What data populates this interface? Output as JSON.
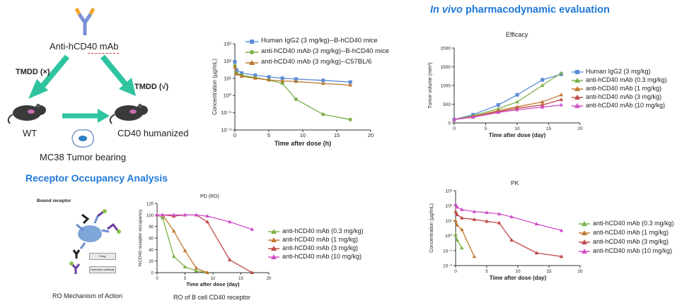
{
  "tmdd": {
    "antibody_label": "Anti-hCD40 mAb",
    "tmdd_left": "TMDD (×)",
    "tmdd_right": "TMDD (√)",
    "wt_label": "WT",
    "humanized_label": "CD40 humanized",
    "tumor_label": "MC38 Tumor bearing",
    "colors": {
      "arrow": "#2ec4a0",
      "antibody_tip": "#f2a52a",
      "antibody_stem": "#7b8fd6"
    }
  },
  "pk_dose": {
    "legend": [
      "Human IgG2 (3 mg/kg)--B-hCD40 mice",
      "anti-hCD40 mAb (3 mg/kg)--B-hCD40 mice",
      "anti-hCD40 mAb (3 mg/kg)--C57BL/6"
    ],
    "xlabel": "Time after dose (h)",
    "ylabel": "Concentration (µg/mL)",
    "xticks": [
      "0",
      "5",
      "10",
      "15",
      "20"
    ],
    "yticks": [
      "10³",
      "10²",
      "10¹",
      "10⁰",
      "10⁻¹",
      "10⁻²"
    ]
  },
  "invivo": {
    "heading_italic": "In vivo",
    "heading_rest": " pharmacodynamic evaluation"
  },
  "efficacy": {
    "title": "Efficacy",
    "xlabel": "Time after dose (day)",
    "ylabel": "Tumor volume (mm³)",
    "xticks": [
      "0",
      "5",
      "10",
      "15",
      "20"
    ],
    "yticks": [
      "0",
      "500",
      "1000",
      "1500",
      "2000"
    ],
    "legend": [
      "Human IgG2 (3 mg/kg)",
      "anti-hCD40 mAb (0.3 mg/kg)",
      "anti-hCD40 mAb (1 mg/kg)",
      "anti-hCD40 mAb (3 mg/kg)",
      "anti-hCD40 mAb (10 mg/kg)"
    ]
  },
  "ro": {
    "heading": "Receptor Occupancy Analysis",
    "bound_label": "Bound receptor",
    "drug_label": "Drug",
    "detection_label": "Detection antibody",
    "mechanism_label": "RO Mechanism of Action",
    "chart_title": "PD (RO)",
    "xlabel": "Time after dose (day)",
    "ylabel": "%CD40 receptor occupancy",
    "caption": "RO of  B cell CD40 receptor",
    "xticks": [
      "0",
      "5",
      "10",
      "15",
      "20"
    ],
    "yticks": [
      "0",
      "20",
      "40",
      "60",
      "80",
      "100",
      "120"
    ],
    "legend": [
      "anti-hCD40 mAb (0.3 mg/kg)",
      "anti-hCD40 mAb (1 mg/kg)",
      "anti-hCD40 mAb (3 mg/kg)",
      "anti-hCD40 mAb (10 mg/kg)"
    ]
  },
  "pk": {
    "title": "PK",
    "xlabel": "Time after dose (day)",
    "ylabel": "Concentration (µg/mL)",
    "xticks": [
      "0",
      "5",
      "10",
      "15",
      "20"
    ],
    "yticks": [
      "10³",
      "10²",
      "10¹",
      "10⁰",
      "10⁻¹",
      "10⁻²"
    ],
    "legend": [
      "anti-hCD40 mAb (0.3 mg/kg)",
      "anti-hCD40 mAb (1 mg/kg)",
      "anti-hCD40 mAb (3 mg/kg)",
      "anti-hCD40 mAb (10 mg/kg)"
    ]
  },
  "chart_data": [
    {
      "type": "line",
      "title": "",
      "xlabel": "Time after dose (h)",
      "ylabel": "Concentration (µg/mL)",
      "xlim": [
        0,
        20
      ],
      "ylim": [
        0.01,
        1000
      ],
      "yscale": "log",
      "series": [
        {
          "name": "Human IgG2 (3 mg/kg)--B-hCD40 mice",
          "color": "#5b8bd6",
          "x": [
            0,
            0.25,
            1,
            3,
            5,
            7,
            9,
            13,
            17
          ],
          "y": [
            90,
            30,
            20,
            15,
            12,
            10,
            9,
            7.5,
            6
          ]
        },
        {
          "name": "anti-hCD40 mAb (3 mg/kg)--B-hCD40 mice",
          "color": "#7bb248",
          "x": [
            0,
            0.25,
            1,
            3,
            5,
            7,
            9,
            13,
            17
          ],
          "y": [
            55,
            20,
            15,
            11,
            8,
            5,
            0.6,
            0.08,
            0.04
          ]
        },
        {
          "name": "anti-hCD40 mAb (3 mg/kg)--C57BL/6",
          "color": "#b8762a",
          "x": [
            0,
            0.25,
            1,
            3,
            5,
            7,
            9,
            13,
            17
          ],
          "y": [
            45,
            18,
            13,
            10,
            8,
            7,
            6.5,
            5,
            4
          ]
        }
      ]
    },
    {
      "type": "line",
      "title": "Efficacy",
      "xlabel": "Time after dose (day)",
      "ylabel": "Tumor volume (mm³)",
      "xlim": [
        0,
        20
      ],
      "ylim": [
        0,
        2000
      ],
      "series": [
        {
          "name": "Human IgG2 (3 mg/kg)",
          "color": "#5b8bd6",
          "x": [
            0,
            3,
            7,
            10,
            14,
            17
          ],
          "y": [
            90,
            220,
            480,
            750,
            1150,
            1300
          ]
        },
        {
          "name": "anti-hCD40 mAb (0.3 mg/kg)",
          "color": "#7bb248",
          "x": [
            0,
            3,
            7,
            10,
            14,
            17
          ],
          "y": [
            90,
            190,
            380,
            560,
            1000,
            1330
          ]
        },
        {
          "name": "anti-hCD40 mAb (1 mg/kg)",
          "color": "#c0782f",
          "x": [
            0,
            3,
            7,
            10,
            14,
            17
          ],
          "y": [
            90,
            170,
            330,
            430,
            560,
            750
          ]
        },
        {
          "name": "anti-hCD40 mAb (3 mg/kg)",
          "color": "#c04848",
          "x": [
            0,
            3,
            7,
            10,
            14,
            17
          ],
          "y": [
            90,
            160,
            300,
            390,
            480,
            620
          ]
        },
        {
          "name": "anti-hCD40 mAb (10 mg/kg)",
          "color": "#d04fc8",
          "x": [
            0,
            3,
            7,
            10,
            14,
            17
          ],
          "y": [
            90,
            150,
            280,
            350,
            420,
            480
          ]
        }
      ]
    },
    {
      "type": "line",
      "title": "PD (RO)",
      "xlabel": "Time after dose (day)",
      "ylabel": "%CD40 receptor occupancy",
      "xlim": [
        0,
        20
      ],
      "ylim": [
        0,
        120
      ],
      "series": [
        {
          "name": "anti-hCD40 mAb (0.3 mg/kg)",
          "color": "#7bb248",
          "x": [
            0,
            1,
            3,
            5,
            7,
            9
          ],
          "y": [
            100,
            95,
            28,
            10,
            3,
            0
          ]
        },
        {
          "name": "anti-hCD40 mAb (1 mg/kg)",
          "color": "#c0782f",
          "x": [
            0,
            1,
            3,
            5,
            7,
            9
          ],
          "y": [
            100,
            100,
            72,
            38,
            8,
            0
          ]
        },
        {
          "name": "anti-hCD40 mAb (3 mg/kg)",
          "color": "#c04848",
          "x": [
            0,
            1,
            3,
            5,
            7,
            9,
            13,
            17
          ],
          "y": [
            100,
            100,
            98,
            100,
            100,
            88,
            22,
            0
          ]
        },
        {
          "name": "anti-hCD40 mAb (10 mg/kg)",
          "color": "#d04fc8",
          "x": [
            0,
            1,
            3,
            5,
            7,
            9,
            13,
            17
          ],
          "y": [
            100,
            100,
            100,
            100,
            100,
            98,
            88,
            75
          ]
        }
      ]
    },
    {
      "type": "line",
      "title": "PK",
      "xlabel": "Time after dose (day)",
      "ylabel": "Concentration (µg/mL)",
      "xlim": [
        0,
        20
      ],
      "ylim": [
        0.01,
        1000
      ],
      "yscale": "log",
      "series": [
        {
          "name": "anti-hCD40 mAb (0.3 mg/kg)",
          "color": "#7bb248",
          "x": [
            0,
            0.25,
            1
          ],
          "y": [
            1.2,
            0.5,
            0.15
          ]
        },
        {
          "name": "anti-hCD40 mAb (1 mg/kg)",
          "color": "#c0782f",
          "x": [
            0,
            0.25,
            1,
            3
          ],
          "y": [
            10,
            5,
            2.5,
            0.04
          ]
        },
        {
          "name": "anti-hCD40 mAb (3 mg/kg)",
          "color": "#c04848",
          "x": [
            0,
            0.25,
            1,
            3,
            5,
            7,
            9,
            13,
            17
          ],
          "y": [
            40,
            25,
            15,
            12,
            9,
            7,
            0.5,
            0.07,
            0.04
          ]
        },
        {
          "name": "anti-hCD40 mAb (10 mg/kg)",
          "color": "#d04fc8",
          "x": [
            0,
            0.25,
            1,
            3,
            5,
            7,
            9,
            13,
            17
          ],
          "y": [
            120,
            80,
            55,
            40,
            35,
            28,
            18,
            6,
            2.2
          ]
        }
      ]
    }
  ]
}
